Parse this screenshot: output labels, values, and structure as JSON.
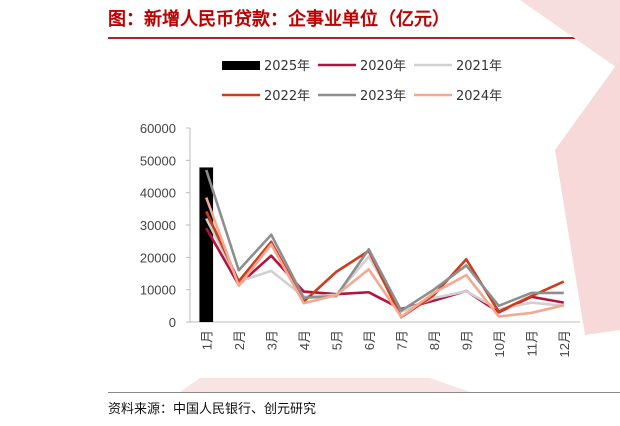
{
  "header": {
    "title": "图：新增人民币贷款：企事业单位（亿元）"
  },
  "footer": {
    "source": "资料来源：中国人民银行、创元研究"
  },
  "chart_data": {
    "type": "line",
    "title": "图：新增人民币贷款：企事业单位（亿元）",
    "xlabel": "",
    "ylabel": "",
    "categories": [
      "1月",
      "2月",
      "3月",
      "4月",
      "5月",
      "6月",
      "7月",
      "8月",
      "9月",
      "10月",
      "11月",
      "12月"
    ],
    "yticks": [
      0,
      10000,
      20000,
      30000,
      40000,
      50000,
      60000
    ],
    "ylim": [
      0,
      60000
    ],
    "legend_position": "top",
    "bar_series": {
      "name": "2025年",
      "color": "#000000",
      "values": [
        47800
      ]
    },
    "series": [
      {
        "name": "2020年",
        "color": "#b5123e",
        "values": [
          29000,
          11500,
          20500,
          9400,
          8600,
          9200,
          4000,
          6600,
          9600,
          3000,
          7800,
          6000
        ]
      },
      {
        "name": "2021年",
        "color": "#d0d0d0",
        "values": [
          32000,
          12500,
          15800,
          7800,
          8400,
          20200,
          3200,
          7400,
          9500,
          3900,
          6000,
          5000
        ]
      },
      {
        "name": "2022年",
        "color": "#cc3d1a",
        "values": [
          34200,
          12600,
          24800,
          6300,
          15500,
          22000,
          1500,
          8300,
          19400,
          3200,
          8000,
          12500
        ]
      },
      {
        "name": "2023年",
        "color": "#8e8e8e",
        "values": [
          47000,
          16000,
          27000,
          7500,
          8000,
          22500,
          3500,
          10000,
          17500,
          5000,
          9000,
          9000
        ]
      },
      {
        "name": "2024年",
        "color": "#f4a891",
        "values": [
          38500,
          11200,
          24000,
          5800,
          8300,
          16300,
          1600,
          9000,
          14500,
          1700,
          2800,
          5200
        ]
      }
    ]
  }
}
